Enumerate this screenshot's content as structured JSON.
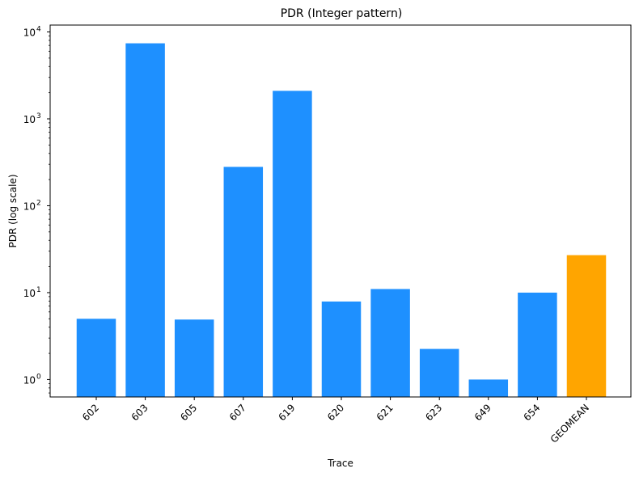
{
  "chart_data": {
    "type": "bar",
    "title": "PDR (Integer pattern)",
    "xlabel": "Trace",
    "ylabel": "PDR (log scale)",
    "yscale": "log",
    "ylim": [
      0.63,
      12000
    ],
    "categories": [
      "602",
      "603",
      "605",
      "607",
      "619",
      "620",
      "621",
      "623",
      "649",
      "654",
      "GEOMEAN"
    ],
    "values": [
      5.0,
      7400,
      4.9,
      280,
      2100,
      7.9,
      11.0,
      2.25,
      1.0,
      10.0,
      27
    ],
    "colors": [
      "#1E90FF",
      "#1E90FF",
      "#1E90FF",
      "#1E90FF",
      "#1E90FF",
      "#1E90FF",
      "#1E90FF",
      "#1E90FF",
      "#1E90FF",
      "#1E90FF",
      "#FFA500"
    ],
    "yticks": [
      1,
      10,
      100,
      1000,
      10000
    ],
    "ytick_labels": [
      {
        "base": "10",
        "exp": "0"
      },
      {
        "base": "10",
        "exp": "1"
      },
      {
        "base": "10",
        "exp": "2"
      },
      {
        "base": "10",
        "exp": "3"
      },
      {
        "base": "10",
        "exp": "4"
      }
    ],
    "grid": false,
    "legend": "none"
  }
}
